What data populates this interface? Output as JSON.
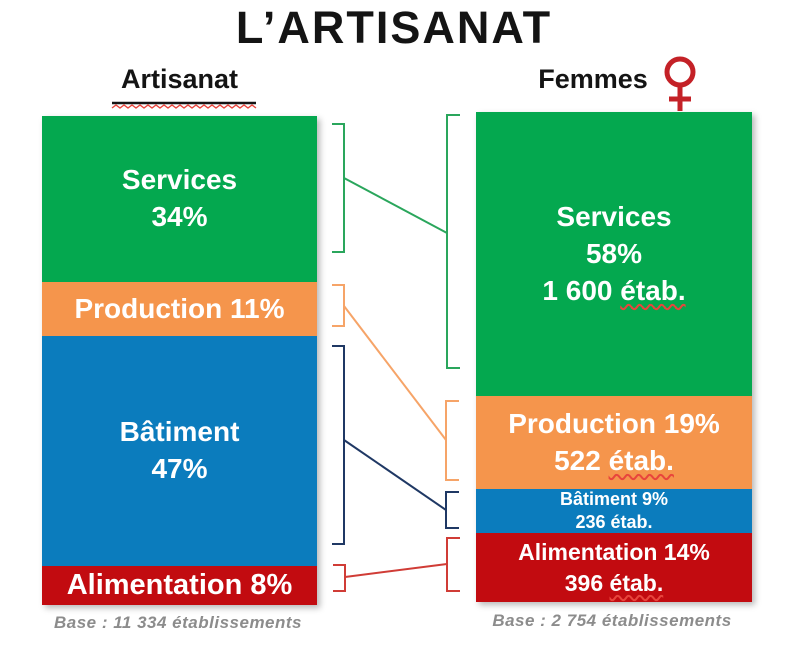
{
  "title": "L’ARTISANAT",
  "columns": {
    "left": {
      "header": "Artisanat"
    },
    "right": {
      "header": "Femmes",
      "icon": "female-symbol"
    }
  },
  "colors": {
    "services": "#04a84f",
    "production": "#f5954c",
    "batiment": "#0b7cbd",
    "alimentation": "#c20b10",
    "connector_services": "#2aa65c",
    "connector_production": "#f6a468",
    "connector_batiment": "#1f3864",
    "connector_alimentation": "#d03c36",
    "female_icon": "#c42127",
    "spellcheck_squiggle": "#e8453c",
    "header_underline": "#141414",
    "base_text": "#8c8c8c"
  },
  "chart_data": {
    "type": "bar",
    "subtype": "stacked-percentage-comparison",
    "title": "L’ARTISANAT",
    "categories": [
      "Services",
      "Production",
      "Bâtiment",
      "Alimentation"
    ],
    "category_colors": {
      "Services": "#04a84f",
      "Production": "#f5954c",
      "Bâtiment": "#0b7cbd",
      "Alimentation": "#c20b10"
    },
    "ylim": [
      0,
      100
    ],
    "grid": false,
    "legend": null,
    "bars": [
      {
        "name": "Artisanat",
        "base_label": "Base : 11 334 établissements",
        "base_n": 11334,
        "segments": [
          {
            "category": "Services",
            "pct": 34,
            "label_lines": [
              "Services",
              "34%"
            ]
          },
          {
            "category": "Production",
            "pct": 11,
            "label_lines": [
              "Production 11%"
            ]
          },
          {
            "category": "Bâtiment",
            "pct": 47,
            "label_lines": [
              "Bâtiment",
              "47%"
            ]
          },
          {
            "category": "Alimentation",
            "pct": 8,
            "label_lines": [
              "Alimentation 8%"
            ]
          }
        ]
      },
      {
        "name": "Femmes",
        "base_label": "Base : 2 754 établissements",
        "base_n": 2754,
        "segments": [
          {
            "category": "Services",
            "pct": 58,
            "etablissements": 1600,
            "label_lines": [
              "Services",
              "58%",
              "1 600 étab."
            ]
          },
          {
            "category": "Production",
            "pct": 19,
            "etablissements": 522,
            "label_lines": [
              "Production 19%",
              "522 étab."
            ]
          },
          {
            "category": "Bâtiment",
            "pct": 9,
            "etablissements": 236,
            "label_lines": [
              "Bâtiment 9%",
              "236 étab."
            ]
          },
          {
            "category": "Alimentation",
            "pct": 14,
            "etablissements": 396,
            "label_lines": [
              "Alimentation 14%",
              "396 étab."
            ]
          }
        ]
      }
    ]
  }
}
